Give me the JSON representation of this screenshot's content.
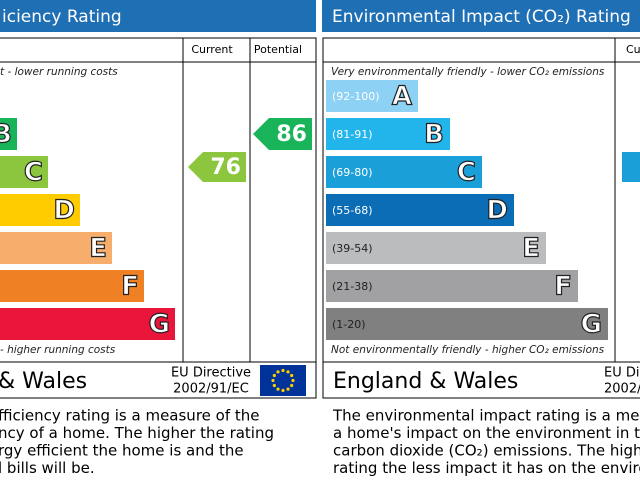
{
  "left": {
    "title": "iciency Rating",
    "headers": [
      "Current",
      "Potential"
    ],
    "top_note": "t - lower running costs",
    "bands": [
      "B",
      "C",
      "D",
      "E",
      "F",
      "G"
    ],
    "bottom_note": "- higher running costs",
    "region": "& Wales",
    "directive": [
      "EU Directive",
      "2002/91/EC"
    ],
    "current": 76,
    "potential": 86,
    "paragraph": [
      "fficiency rating is a measure of the",
      "ncy of a home. The higher the rating",
      "rgy efficient the home is and the",
      "l bills will be."
    ]
  },
  "right": {
    "title": "Environmental Impact (CO₂) Rating",
    "headers": [
      "Cu"
    ],
    "top_note": "Very environmentally friendly - lower CO₂ emissions",
    "bands": [
      {
        "range": "(92-100)",
        "letter": "A"
      },
      {
        "range": "(81-91)",
        "letter": "B"
      },
      {
        "range": "(69-80)",
        "letter": "C"
      },
      {
        "range": "(55-68)",
        "letter": "D"
      },
      {
        "range": "(39-54)",
        "letter": "E"
      },
      {
        "range": "(21-38)",
        "letter": "F"
      },
      {
        "range": "(1-20)",
        "letter": "G"
      }
    ],
    "bottom_note": "Not environmentally friendly - higher CO₂ emissions",
    "region": "England & Wales",
    "directive": [
      "EU Di",
      "2002/"
    ],
    "paragraph": [
      "The environmental impact rating is a mea",
      "a home's impact on the environment in te",
      "carbon dioxide (CO₂) emissions. The high",
      "rating the less impact it has on the enviro"
    ]
  }
}
